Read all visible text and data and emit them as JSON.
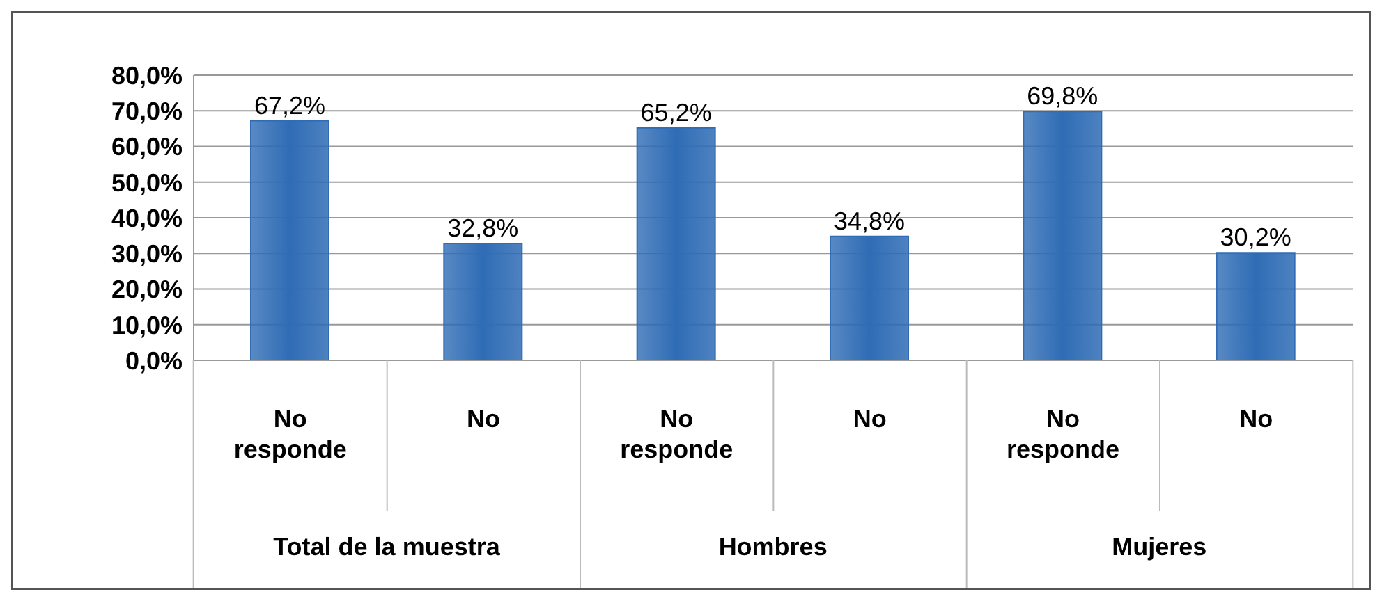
{
  "chart_data": {
    "type": "bar",
    "categories": [
      "No responde",
      "No",
      "No responde",
      "No",
      "No responde",
      "No"
    ],
    "values": [
      67.2,
      32.8,
      65.2,
      34.8,
      69.8,
      30.2
    ],
    "color": "#2f6cb5",
    "value_labels": [
      "67,2%",
      "32,8%",
      "65,2%",
      "34,8%",
      "69,8%",
      "30,2%"
    ],
    "ylim": [
      0,
      80
    ],
    "yticks": [
      {
        "value": 0,
        "label": "0,0%"
      },
      {
        "value": 10,
        "label": "10,0%"
      },
      {
        "value": 20,
        "label": "20,0%"
      },
      {
        "value": 30,
        "label": "30,0%"
      },
      {
        "value": 40,
        "label": "40,0%"
      },
      {
        "value": 50,
        "label": "50,0%"
      },
      {
        "value": 60,
        "label": "60,0%"
      },
      {
        "value": 70,
        "label": "70,0%"
      },
      {
        "value": 80,
        "label": "80,0%"
      }
    ],
    "grid": "y",
    "annotations": [
      "Total de la muestra",
      "Hombres",
      "Mujeres"
    ]
  }
}
